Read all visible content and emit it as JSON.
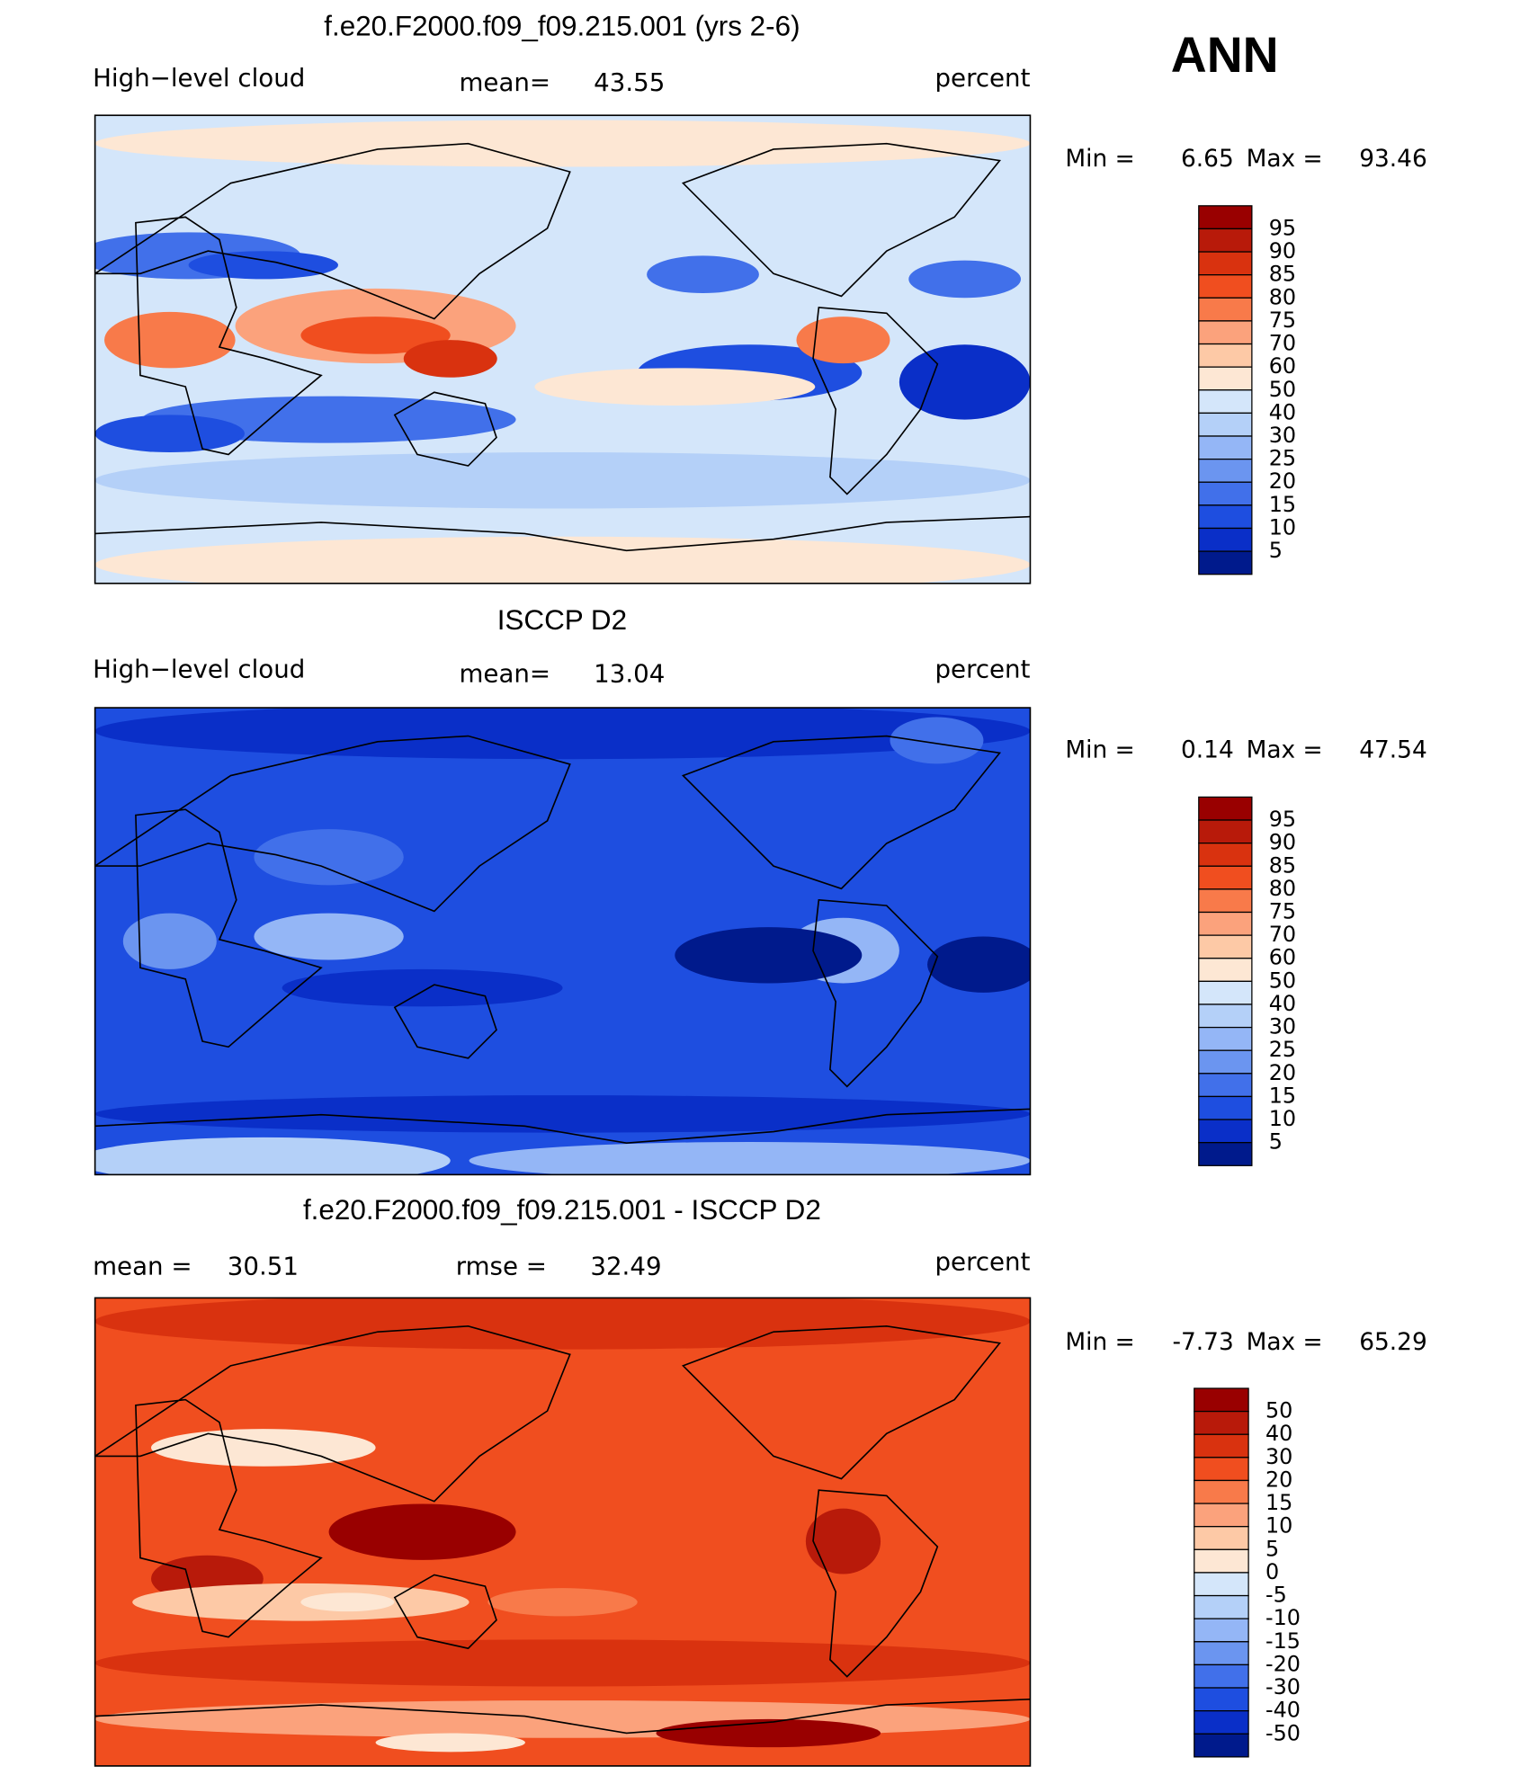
{
  "season": "ANN",
  "panels": [
    {
      "title": "f.e20.F2000.f09_f09.215.001 (yrs 2-6)",
      "left_label": "High−level cloud",
      "stats": [
        {
          "label": "mean=",
          "value": 43.55
        }
      ],
      "units": "percent",
      "min_label": "Min =",
      "min": 6.65,
      "max_label": "Max =",
      "max": 93.46,
      "colorbar": {
        "levels": [
          95,
          90,
          85,
          80,
          75,
          70,
          60,
          50,
          40,
          30,
          25,
          20,
          15,
          10,
          5
        ],
        "colors": [
          "#990000",
          "#b81a0a",
          "#d9320f",
          "#f04e1f",
          "#f87a4a",
          "#fba27c",
          "#fdc9a6",
          "#fde7d4",
          "#d4e6fa",
          "#b4d0f8",
          "#94b6f6",
          "#6b95f0",
          "#4170ea",
          "#1e4ee0",
          "#0a2fc8",
          "#001a8c"
        ]
      }
    },
    {
      "title": "ISCCP D2",
      "left_label": "High−level cloud",
      "stats": [
        {
          "label": "mean=",
          "value": 13.04
        }
      ],
      "units": "percent",
      "min_label": "Min =",
      "min": 0.14,
      "max_label": "Max =",
      "max": 47.54,
      "colorbar": {
        "levels": [
          95,
          90,
          85,
          80,
          75,
          70,
          60,
          50,
          40,
          30,
          25,
          20,
          15,
          10,
          5
        ],
        "colors": [
          "#990000",
          "#b81a0a",
          "#d9320f",
          "#f04e1f",
          "#f87a4a",
          "#fba27c",
          "#fdc9a6",
          "#fde7d4",
          "#d4e6fa",
          "#b4d0f8",
          "#94b6f6",
          "#6b95f0",
          "#4170ea",
          "#1e4ee0",
          "#0a2fc8",
          "#001a8c"
        ]
      }
    },
    {
      "title": "f.e20.F2000.f09_f09.215.001 - ISCCP D2",
      "stats": [
        {
          "label": "mean =",
          "value": 30.51
        },
        {
          "label": "rmse =",
          "value": 32.49
        }
      ],
      "units": "percent",
      "min_label": "Min =",
      "min": -7.73,
      "max_label": "Max =",
      "max": 65.29,
      "colorbar": {
        "levels": [
          50,
          40,
          30,
          20,
          15,
          10,
          5,
          0,
          -5,
          -10,
          -15,
          -20,
          -30,
          -40,
          -50
        ],
        "colors": [
          "#990000",
          "#b81a0a",
          "#d9320f",
          "#f04e1f",
          "#f87a4a",
          "#fba27c",
          "#fdc9a6",
          "#fde7d4",
          "#d4e6fa",
          "#b4d0f8",
          "#94b6f6",
          "#6b95f0",
          "#4170ea",
          "#1e4ee0",
          "#0a2fc8",
          "#001a8c"
        ]
      }
    }
  ]
}
